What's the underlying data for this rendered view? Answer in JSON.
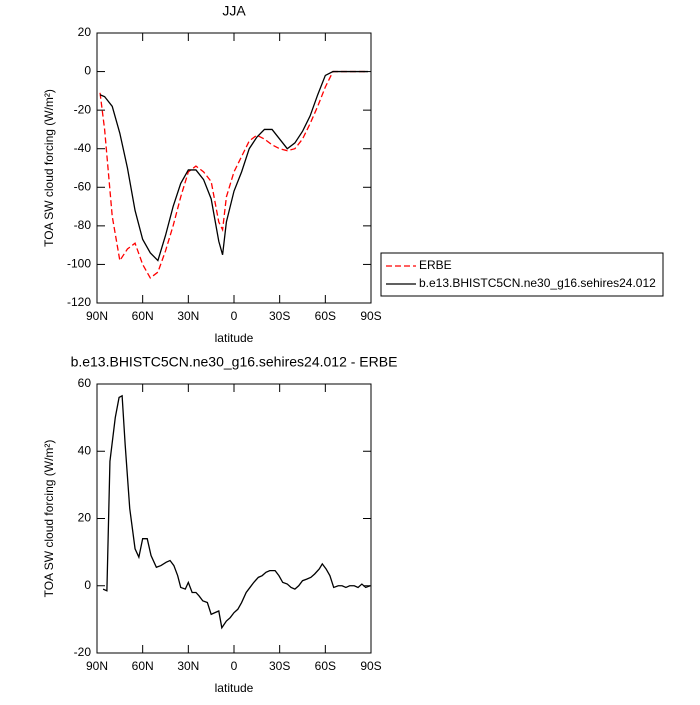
{
  "chart_data": [
    {
      "type": "line",
      "title": "JJA",
      "x_label": "latitude",
      "y_label": "TOA SW cloud forcing (W/m²)",
      "x": [
        88,
        85,
        80,
        75,
        70,
        65,
        60,
        55,
        50,
        45,
        40,
        35,
        30,
        25,
        20,
        15,
        10,
        7.5,
        5,
        0,
        -5,
        -10,
        -15,
        -20,
        -25,
        -30,
        -35,
        -40,
        -45,
        -50,
        -55,
        -60,
        -65,
        -70,
        -75,
        -80,
        -85,
        -88
      ],
      "series": [
        {
          "name": "ERBE",
          "color": "#ff0000",
          "dashed": true,
          "values": [
            -11,
            -30,
            -75,
            -98,
            -92,
            -89,
            -100,
            -107,
            -104,
            -93,
            -80,
            -65,
            -52,
            -49,
            -52,
            -57,
            -78,
            -82,
            -65,
            -52,
            -44,
            -36,
            -33,
            -35,
            -38,
            -40,
            -41,
            -40,
            -35,
            -27,
            -18,
            -8,
            0,
            0,
            0,
            0,
            0,
            0
          ]
        },
        {
          "name": "b.e13.BHISTC5CN.ne30_g16.sehires24.012",
          "color": "#000000",
          "dashed": false,
          "values": [
            -12,
            -13,
            -18,
            -32,
            -50,
            -72,
            -87,
            -94,
            -98,
            -85,
            -70,
            -58,
            -51,
            -51,
            -56,
            -66,
            -88,
            -95,
            -78,
            -62,
            -52,
            -40,
            -34,
            -30,
            -30,
            -35,
            -40,
            -37,
            -31,
            -23,
            -12,
            -2,
            0,
            0,
            0,
            0,
            0,
            0
          ]
        }
      ],
      "xlim": [
        90,
        -90
      ],
      "xticks": [
        {
          "value": 90,
          "label": "90N"
        },
        {
          "value": 60,
          "label": "60N"
        },
        {
          "value": 30,
          "label": "30N"
        },
        0,
        {
          "value": -30,
          "label": "30S"
        },
        {
          "value": -60,
          "label": "60S"
        },
        {
          "value": -90,
          "label": "90S"
        }
      ],
      "ylim": [
        -120,
        20
      ],
      "yticks": [
        20,
        0,
        -20,
        -40,
        -60,
        -80,
        -100,
        -120
      ],
      "legend": true
    },
    {
      "type": "line",
      "title": "b.e13.BHISTC5CN.ne30_g16.sehires24.012 - ERBE",
      "x_label": "latitude",
      "y_label": "TOA SW cloud forcing (W/m²)",
      "x": [
        86,
        83.5,
        81.5,
        78,
        75.5,
        73.5,
        71.5,
        68.5,
        65,
        62.5,
        60,
        57,
        54.5,
        51,
        48,
        44.5,
        42,
        39.5,
        37,
        35,
        32,
        30,
        27.5,
        25,
        23,
        20.5,
        17.5,
        15,
        12.5,
        10,
        8,
        5,
        2.5,
        0,
        -2.5,
        -5,
        -8,
        -10.5,
        -13,
        -16,
        -18.5,
        -21,
        -23.5,
        -27,
        -29.5,
        -32,
        -35,
        -37.5,
        -40,
        -42.5,
        -45,
        -48,
        -50.5,
        -53,
        -56,
        -58,
        -60.5,
        -63,
        -65.5,
        -68.5,
        -71,
        -73.5,
        -76,
        -79,
        -81.5,
        -84,
        -86.5,
        -89.5
      ],
      "values": [
        -1,
        -1.5,
        37,
        50,
        56,
        56.5,
        42,
        23,
        11,
        8.5,
        14,
        14,
        9,
        5.5,
        6,
        7,
        7.5,
        6,
        3,
        -0.5,
        -1,
        1,
        -2,
        -2,
        -3,
        -4.5,
        -5,
        -8.5,
        -8,
        -7.5,
        -12.5,
        -10.5,
        -9.5,
        -8,
        -7,
        -5,
        -2,
        -0.5,
        1,
        2.5,
        3,
        4,
        4.5,
        4.5,
        3,
        1,
        0.5,
        -0.5,
        -1,
        0,
        1.5,
        2,
        2.5,
        3.5,
        5,
        6.5,
        5,
        3,
        -0.5,
        0,
        0,
        -0.5,
        0,
        0,
        -0.5,
        0.5,
        -0.5,
        0
      ],
      "color": "#000000",
      "xlim": [
        90,
        -90
      ],
      "xticks": [
        {
          "value": 90,
          "label": "90N"
        },
        {
          "value": 60,
          "label": "60N"
        },
        {
          "value": 30,
          "label": "30N"
        },
        0,
        {
          "value": -30,
          "label": "30S"
        },
        {
          "value": -60,
          "label": "60S"
        },
        {
          "value": -90,
          "label": "90S"
        }
      ],
      "ylim": [
        -20,
        60
      ],
      "yticks": [
        60,
        40,
        20,
        0,
        -20
      ],
      "legend": false
    }
  ]
}
